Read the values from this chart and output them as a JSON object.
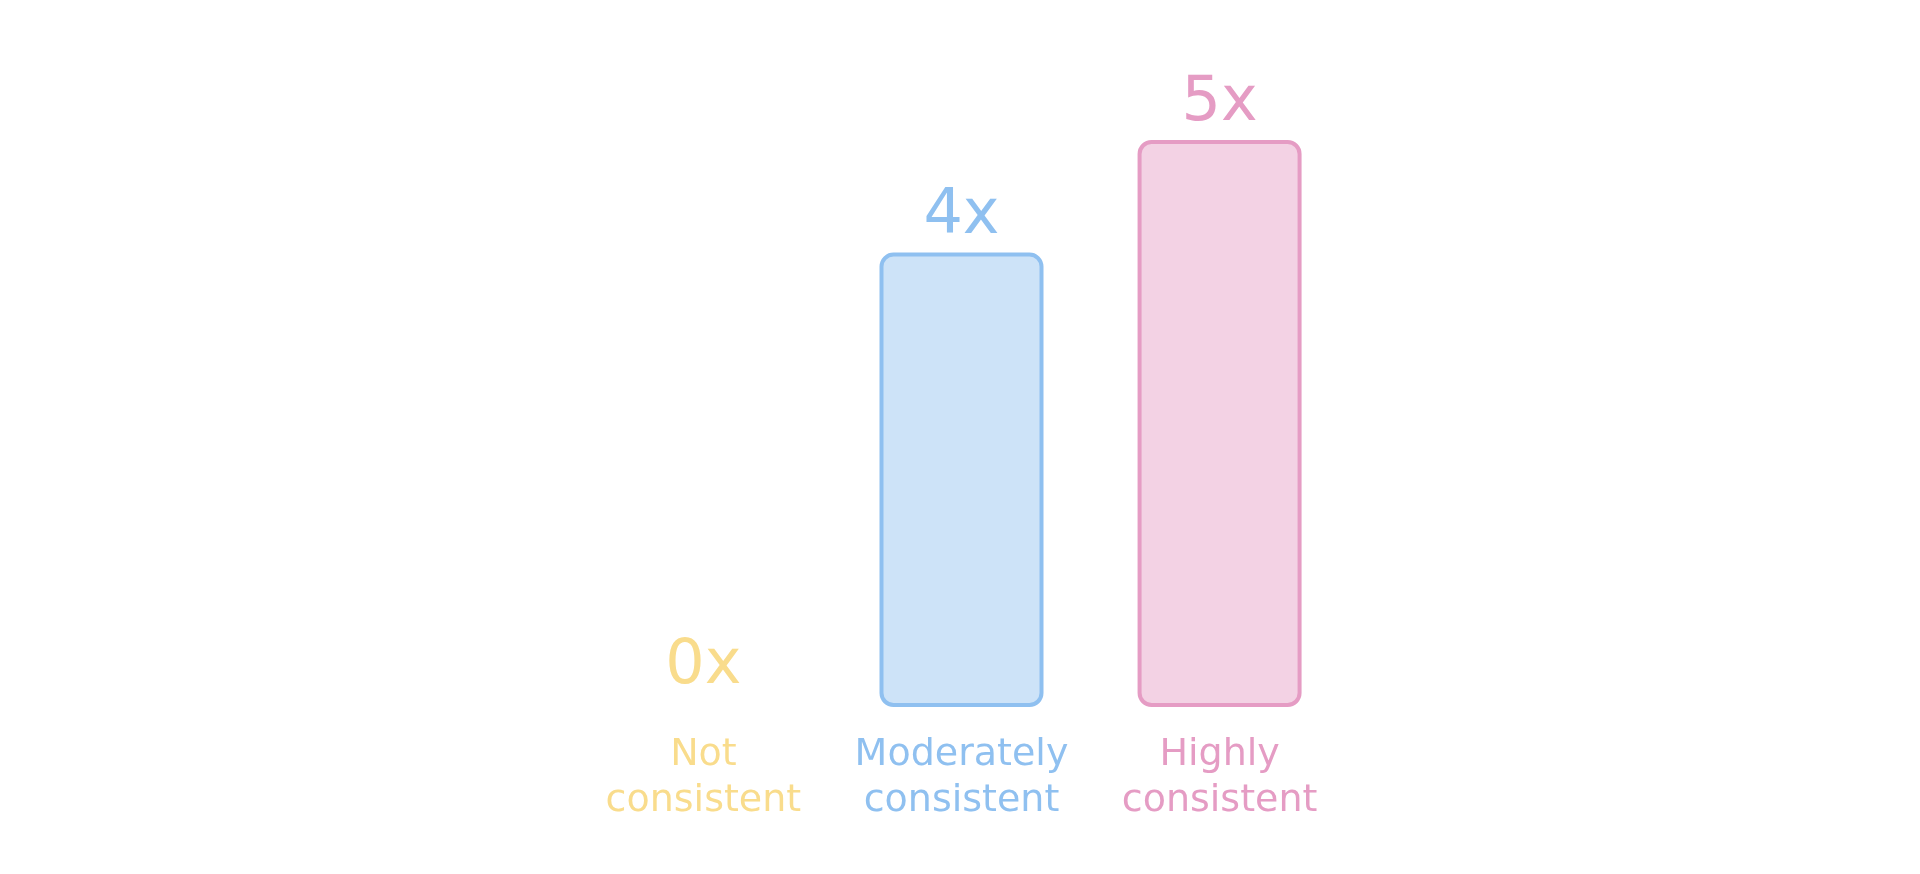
{
  "chart_data": {
    "type": "bar",
    "categories": [
      "Not consistent",
      "Moderately consistent",
      "Highly consistent"
    ],
    "values": [
      0,
      4,
      5
    ],
    "value_labels": [
      "0x",
      "4x",
      "5x"
    ],
    "colors": [
      "#f9dc8c",
      "#8fc0f0",
      "#e59cc4"
    ]
  }
}
